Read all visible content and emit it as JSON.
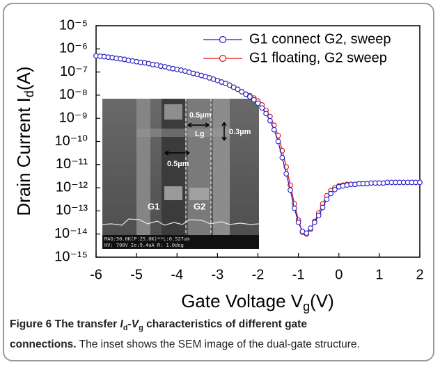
{
  "chart_data": {
    "type": "line",
    "yscale": "log",
    "legend": "upper-right",
    "marker": "circle",
    "xlabel": {
      "text": "Gate Voltage V",
      "sub": "g",
      "suffix": "(V)"
    },
    "ylabel": {
      "text": "Drain Current I",
      "sub": "d",
      "suffix": "(A)"
    },
    "xlim": [
      -6,
      2
    ],
    "xticks": [
      -6,
      -5,
      -4,
      -3,
      -2,
      -1,
      0,
      1,
      2
    ],
    "ylim": [
      1e-15,
      1e-05
    ],
    "yticks": [
      {
        "value": 1e-05,
        "label": "10⁻⁵"
      },
      {
        "value": 1e-06,
        "label": "10⁻⁶"
      },
      {
        "value": 1e-07,
        "label": "10⁻⁷"
      },
      {
        "value": 1e-08,
        "label": "10⁻⁸"
      },
      {
        "value": 1e-09,
        "label": "10⁻⁹"
      },
      {
        "value": 1e-10,
        "label": "10⁻¹⁰"
      },
      {
        "value": 1e-11,
        "label": "10⁻¹¹"
      },
      {
        "value": 1e-12,
        "label": "10⁻¹²"
      },
      {
        "value": 1e-13,
        "label": "10⁻¹³"
      },
      {
        "value": 1e-14,
        "label": "10⁻¹⁴"
      },
      {
        "value": 1e-15,
        "label": "10⁻¹⁵"
      }
    ],
    "x": [
      -6,
      -5.9,
      -5.8,
      -5.7,
      -5.6,
      -5.5,
      -5.4,
      -5.3,
      -5.2,
      -5.1,
      -5,
      -4.9,
      -4.8,
      -4.7,
      -4.6,
      -4.5,
      -4.4,
      -4.3,
      -4.2,
      -4.1,
      -4,
      -3.9,
      -3.8,
      -3.7,
      -3.6,
      -3.5,
      -3.4,
      -3.3,
      -3.2,
      -3.1,
      -3,
      -2.9,
      -2.8,
      -2.7,
      -2.6,
      -2.5,
      -2.4,
      -2.3,
      -2.2,
      -2.1,
      -2,
      -1.9,
      -1.8,
      -1.7,
      -1.6,
      -1.5,
      -1.4,
      -1.3,
      -1.2,
      -1.1,
      -1,
      -0.9,
      -0.8,
      -0.7,
      -0.6,
      -0.5,
      -0.4,
      -0.3,
      -0.2,
      -0.1,
      0,
      0.1,
      0.2,
      0.3,
      0.4,
      0.5,
      0.6,
      0.7,
      0.8,
      0.9,
      1,
      1.1,
      1.2,
      1.3,
      1.4,
      1.5,
      1.6,
      1.7,
      1.8,
      1.9,
      2
    ],
    "series": [
      {
        "name": "G1 connect G2, sweep",
        "color": "#1f1fcc",
        "values": [
          5e-07,
          4.8e-07,
          4.6e-07,
          4.4e-07,
          4.2e-07,
          3.9e-07,
          3.7e-07,
          3.5e-07,
          3.2e-07,
          3e-07,
          2.8e-07,
          2.6e-07,
          2.5e-07,
          2.3e-07,
          2.1e-07,
          2e-07,
          1.8e-07,
          1.7e-07,
          1.5e-07,
          1.4e-07,
          1.3e-07,
          1.2e-07,
          1.1e-07,
          9.8e-08,
          8.7e-08,
          7.9e-08,
          7.1e-08,
          6.3e-08,
          5.6e-08,
          4.9e-08,
          4.3e-08,
          3.7e-08,
          3.2e-08,
          2.7e-08,
          2.2e-08,
          1.8e-08,
          1.4e-08,
          1.1e-08,
          8.5e-09,
          6.3e-09,
          4.5e-09,
          2.8e-09,
          1.6e-09,
          7.9e-10,
          3.2e-10,
          1e-10,
          2e-11,
          4e-12,
          7.9e-13,
          1.3e-13,
          3.2e-14,
          1.3e-14,
          1.1e-14,
          1.8e-14,
          3.2e-14,
          6.3e-14,
          1.4e-13,
          3.2e-13,
          5.6e-13,
          8.3e-13,
          1.1e-12,
          1.2e-12,
          1.3e-12,
          1.4e-12,
          1.4e-12,
          1.5e-12,
          1.5e-12,
          1.5e-12,
          1.6e-12,
          1.6e-12,
          1.6e-12,
          1.6e-12,
          1.7e-12,
          1.7e-12,
          1.7e-12,
          1.7e-12,
          1.7e-12,
          1.7e-12,
          1.7e-12,
          1.7e-12,
          1.7e-12
        ]
      },
      {
        "name": "G1 floating, G2 sweep",
        "color": "#e01010",
        "values": [
          5e-07,
          4.8e-07,
          4.6e-07,
          4.4e-07,
          4.2e-07,
          3.9e-07,
          3.7e-07,
          3.5e-07,
          3.2e-07,
          3e-07,
          2.8e-07,
          2.6e-07,
          2.5e-07,
          2.3e-07,
          2.1e-07,
          2e-07,
          1.8e-07,
          1.7e-07,
          1.5e-07,
          1.4e-07,
          1.3e-07,
          1.2e-07,
          1.1e-07,
          9.8e-08,
          8.7e-08,
          7.9e-08,
          7.1e-08,
          6.3e-08,
          5.6e-08,
          4.9e-08,
          4.3e-08,
          3.7e-08,
          3.2e-08,
          2.7e-08,
          2.2e-08,
          1.8e-08,
          1.4e-08,
          1.1e-08,
          9.5e-09,
          7.5e-09,
          5.6e-09,
          3.8e-09,
          2.2e-09,
          1.2e-09,
          5e-10,
          1.8e-10,
          4e-11,
          7.9e-12,
          1.3e-12,
          2e-13,
          4e-14,
          1.2e-14,
          1e-14,
          1.6e-14,
          3.5e-14,
          8e-14,
          2e-13,
          4.5e-13,
          7.5e-13,
          1e-12,
          1.2e-12,
          1.3e-12,
          1.4e-12,
          1.4e-12,
          1.4e-12,
          1.5e-12,
          1.5e-12,
          1.5e-12,
          1.6e-12,
          1.6e-12,
          1.6e-12,
          1.6e-12,
          1.7e-12,
          1.7e-12,
          1.7e-12,
          1.7e-12,
          1.7e-12,
          1.7e-12,
          1.7e-12,
          1.7e-12,
          1.7e-12
        ]
      }
    ]
  },
  "inset": {
    "spacing": "0.5µm",
    "gate_length": "Lg",
    "height": "0.3µm",
    "width": "0.5µm",
    "gate1": "G1",
    "gate2": "G2",
    "info_line1": "MAG:50.0K(P:25.0K)**L:0.527um",
    "info_line2": "HV: 700V  Ie:9.4uA  R: 1.0deg"
  },
  "caption": {
    "runs": [
      "Figure 6",
      " The transfer ",
      "I",
      "d",
      "-",
      "V",
      "g",
      " characteristics of different gate",
      "connections.",
      " The inset shows the SEM image of the dual-gate structure."
    ]
  }
}
